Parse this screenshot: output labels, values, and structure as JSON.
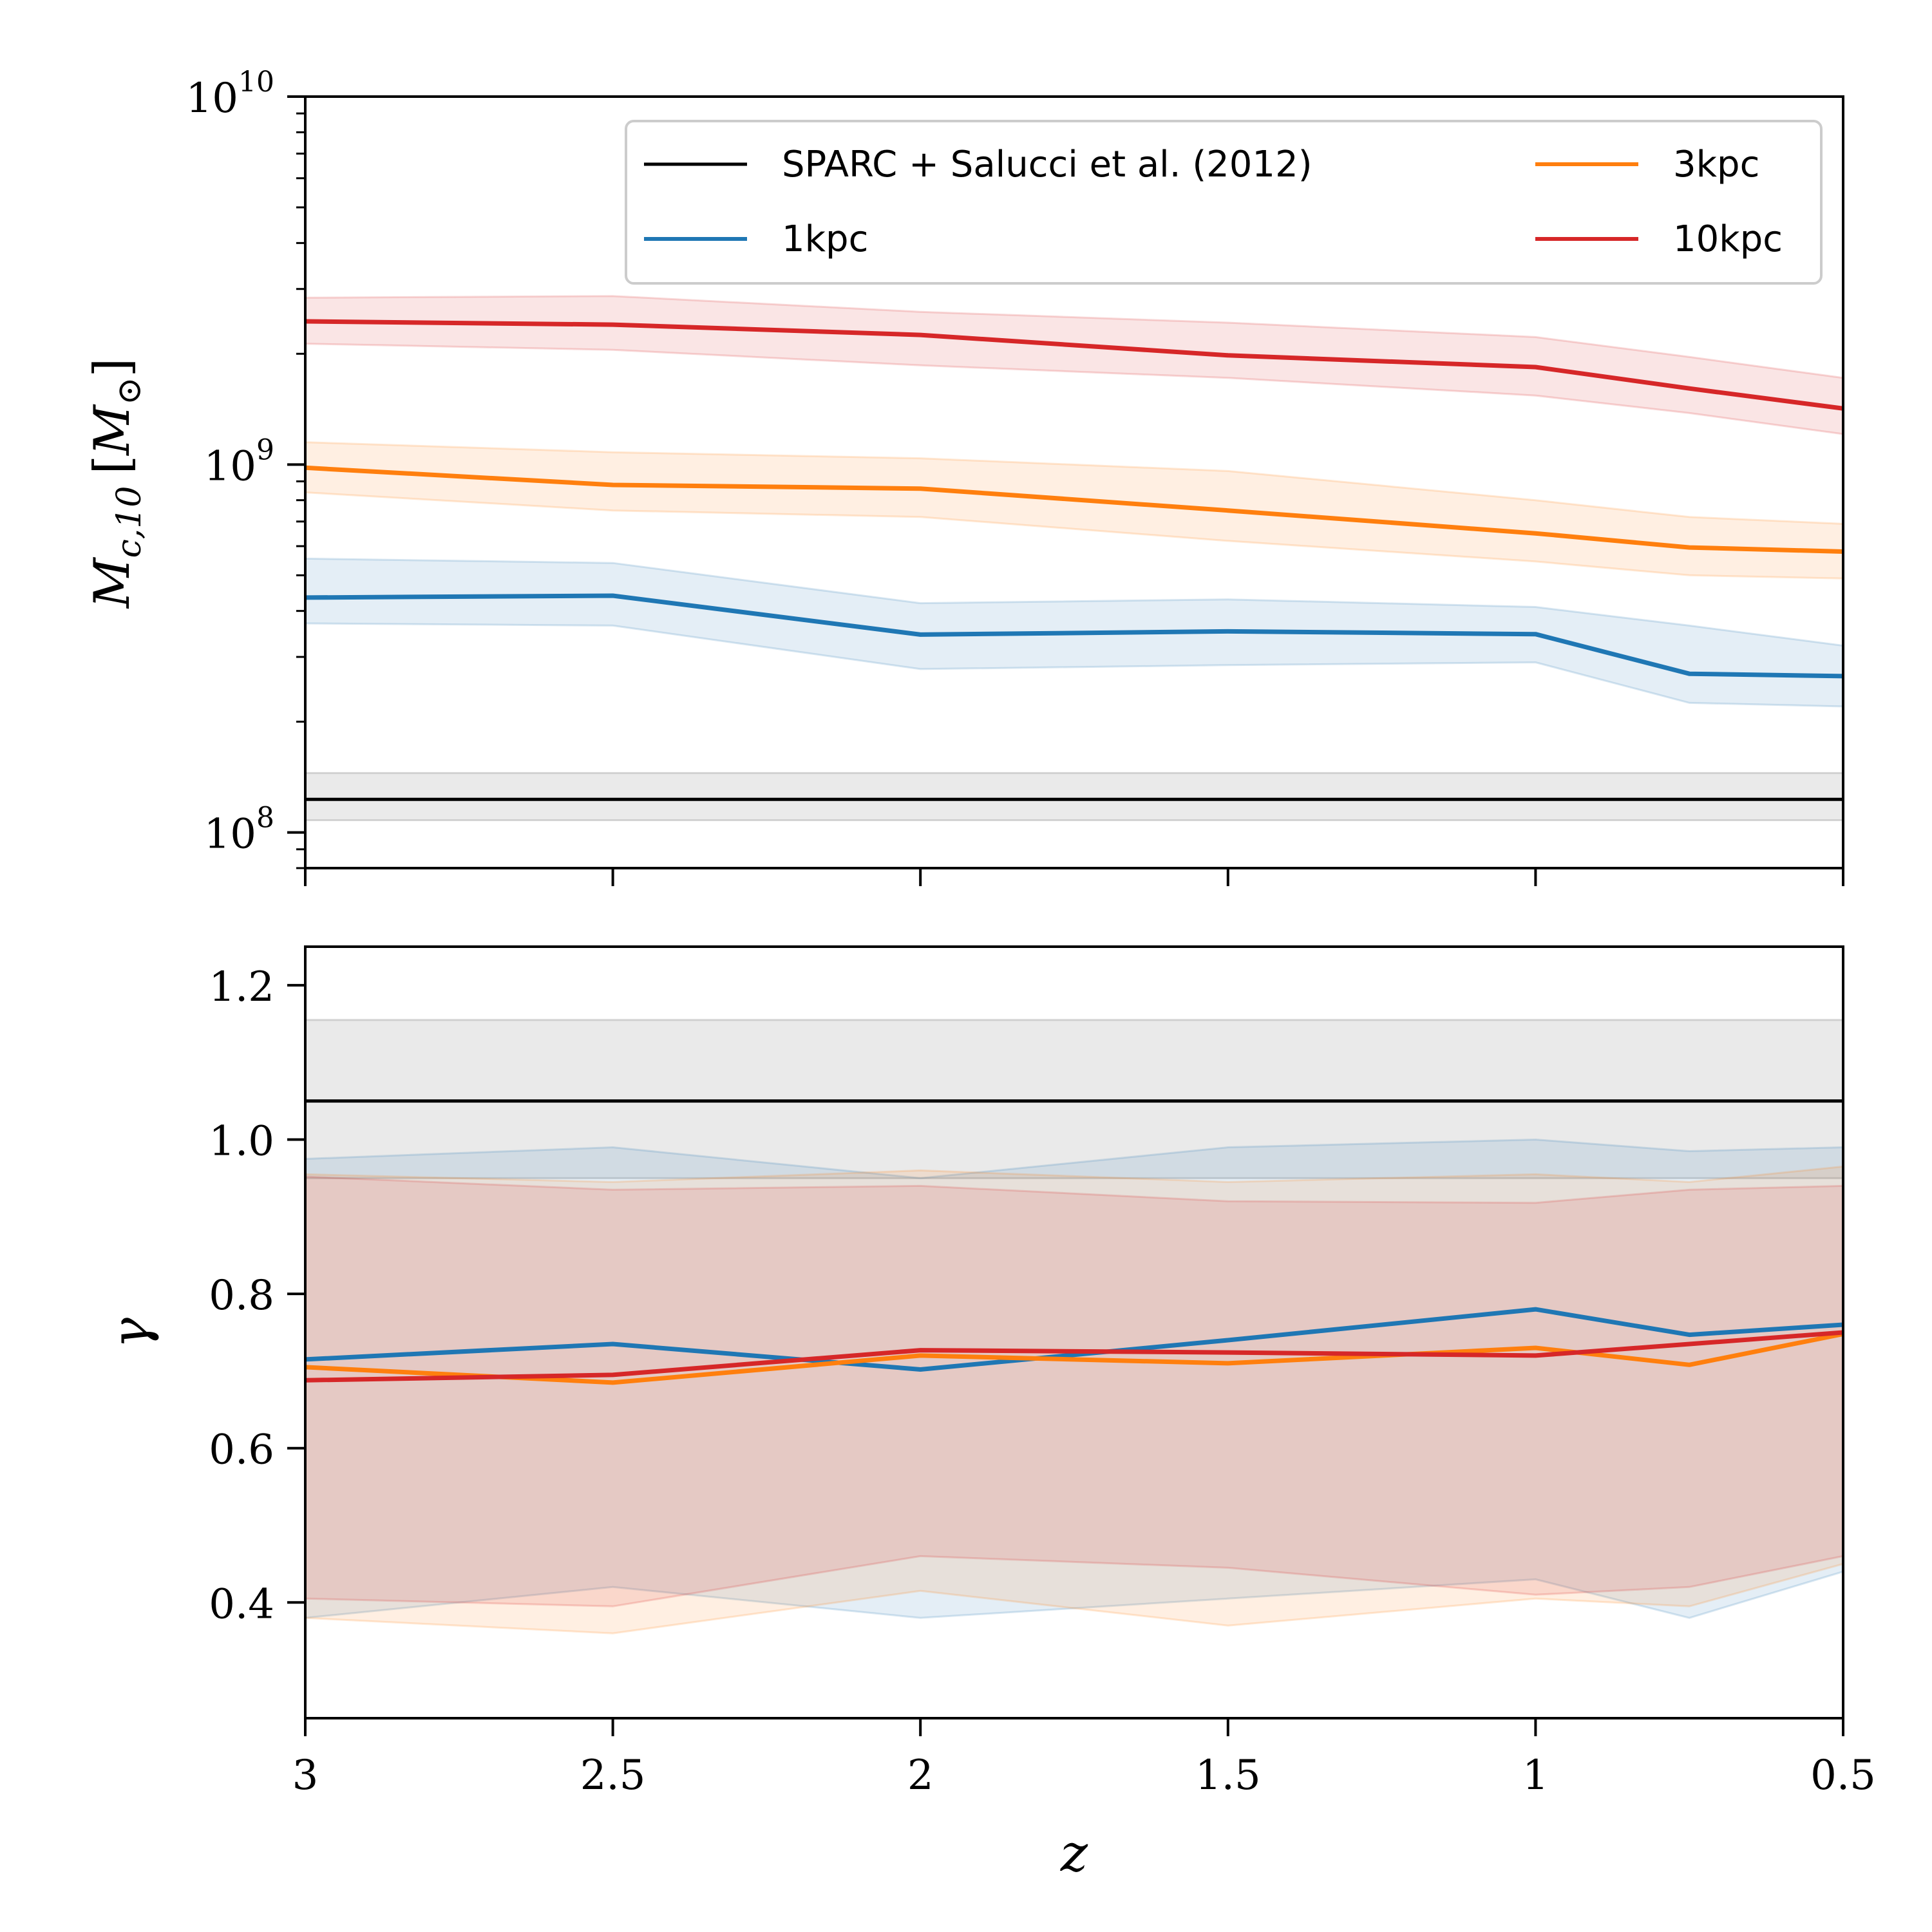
{
  "chart_data": [
    {
      "type": "line",
      "panel": "top",
      "ylabel": "M_{c,10} [M_⊙]",
      "ylabel_main": "M",
      "ylabel_sub": "c,10",
      "ylabel_unit_open": "[",
      "ylabel_unit": "M",
      "ylabel_unit_sub": "⊙",
      "ylabel_unit_close": "]",
      "yscale": "log",
      "ylim": [
        80000000,
        10000000000
      ],
      "xlim": [
        3,
        0.5
      ],
      "x_inverted": true,
      "yticks": [
        {
          "value": 100000000,
          "base": "10",
          "exp": "8"
        },
        {
          "value": 1000000000,
          "base": "10",
          "exp": "9"
        },
        {
          "value": 10000000000,
          "base": "10",
          "exp": "10"
        }
      ],
      "legend": {
        "placement": "top-right",
        "ncol": 2,
        "entries": [
          {
            "label": "SPARC + Salucci et al. (2012)",
            "color": "#000000"
          },
          {
            "label": "3kpc",
            "color": "#ff7f0e"
          },
          {
            "label": "1kpc",
            "color": "#1f77b4"
          },
          {
            "label": "10kpc",
            "color": "#d62728"
          }
        ]
      },
      "reference": {
        "label": "SPARC + Salucci et al. (2012)",
        "color": "#000000",
        "band_color": "#bbbbbb",
        "value": 123000000,
        "low": 108000000,
        "high": 145000000
      },
      "x": [
        3,
        2.5,
        2,
        1.5,
        1,
        0.75,
        0.5
      ],
      "series": [
        {
          "name": "1kpc",
          "color": "#1f77b4",
          "values": [
            435000000,
            440000000,
            345000000,
            352000000,
            346000000,
            270000000,
            266000000
          ],
          "low": [
            370000000,
            365000000,
            278000000,
            285000000,
            290000000,
            225000000,
            220000000
          ],
          "high": [
            555000000,
            540000000,
            420000000,
            430000000,
            410000000,
            365000000,
            322000000
          ]
        },
        {
          "name": "3kpc",
          "color": "#ff7f0e",
          "values": [
            980000000,
            880000000,
            860000000,
            750000000,
            650000000,
            595000000,
            580000000
          ],
          "low": [
            840000000,
            750000000,
            720000000,
            620000000,
            545000000,
            500000000,
            490000000
          ],
          "high": [
            1150000000,
            1080000000,
            1040000000,
            960000000,
            800000000,
            720000000,
            690000000
          ]
        },
        {
          "name": "10kpc",
          "color": "#d62728",
          "values": [
            2450000000,
            2400000000,
            2250000000,
            1980000000,
            1840000000,
            1610000000,
            1420000000
          ],
          "low": [
            2130000000,
            2050000000,
            1860000000,
            1720000000,
            1540000000,
            1380000000,
            1210000000
          ],
          "high": [
            2840000000,
            2870000000,
            2600000000,
            2430000000,
            2220000000,
            1960000000,
            1720000000
          ]
        }
      ]
    },
    {
      "type": "line",
      "panel": "bottom",
      "xlabel": "z",
      "ylabel": "γ",
      "ylim": [
        0.25,
        1.25
      ],
      "xlim": [
        3,
        0.5
      ],
      "x_inverted": true,
      "xticks": [
        {
          "value": 3,
          "label": "3"
        },
        {
          "value": 2.5,
          "label": "2.5"
        },
        {
          "value": 2,
          "label": "2"
        },
        {
          "value": 1.5,
          "label": "1.5"
        },
        {
          "value": 1,
          "label": "1"
        },
        {
          "value": 0.5,
          "label": "0.5"
        }
      ],
      "yticks": [
        {
          "value": 0.4,
          "label": "0.4"
        },
        {
          "value": 0.6,
          "label": "0.6"
        },
        {
          "value": 0.8,
          "label": "0.8"
        },
        {
          "value": 1.0,
          "label": "1.0"
        },
        {
          "value": 1.2,
          "label": "1.2"
        }
      ],
      "reference": {
        "label": "SPARC + Salucci et al. (2012)",
        "color": "#000000",
        "band_color": "#bbbbbb",
        "value": 1.05,
        "low": 0.95,
        "high": 1.155
      },
      "x": [
        3,
        2.5,
        2,
        1.5,
        1,
        0.75,
        0.5
      ],
      "series": [
        {
          "name": "1kpc",
          "color": "#1f77b4",
          "values": [
            0.715,
            0.735,
            0.702,
            0.74,
            0.78,
            0.747,
            0.76
          ],
          "low": [
            0.38,
            0.42,
            0.38,
            0.405,
            0.43,
            0.38,
            0.44
          ],
          "high": [
            0.975,
            0.99,
            0.95,
            0.99,
            1.0,
            0.985,
            0.99
          ]
        },
        {
          "name": "3kpc",
          "color": "#ff7f0e",
          "values": [
            0.705,
            0.685,
            0.72,
            0.71,
            0.73,
            0.708,
            0.748
          ],
          "low": [
            0.38,
            0.36,
            0.415,
            0.37,
            0.405,
            0.395,
            0.45
          ],
          "high": [
            0.955,
            0.945,
            0.96,
            0.945,
            0.955,
            0.945,
            0.965
          ]
        },
        {
          "name": "10kpc",
          "color": "#d62728",
          "values": [
            0.688,
            0.695,
            0.727,
            0.724,
            0.72,
            0.735,
            0.75
          ],
          "low": [
            0.405,
            0.395,
            0.46,
            0.445,
            0.41,
            0.42,
            0.46
          ],
          "high": [
            0.952,
            0.935,
            0.94,
            0.92,
            0.918,
            0.935,
            0.94
          ]
        }
      ]
    }
  ]
}
